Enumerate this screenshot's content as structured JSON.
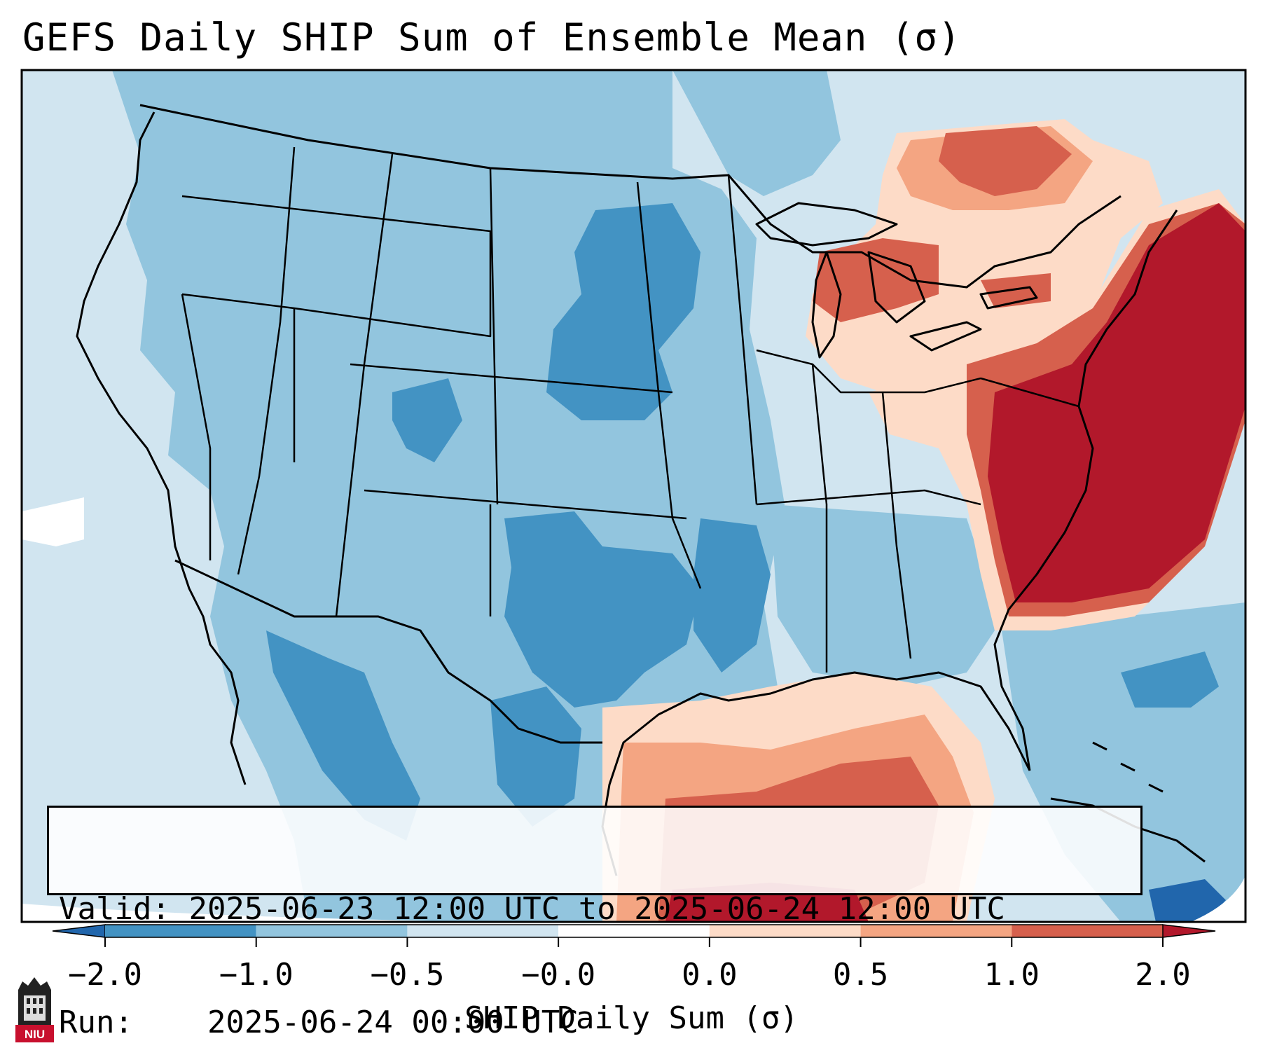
{
  "title": "GEFS Daily SHIP Sum of Ensemble Mean (σ)",
  "info": {
    "valid_label": "Valid:",
    "valid_value": "2025-06-23 12:00 UTC to 2025-06-24 12:00 UTC",
    "run_label": "Run:",
    "run_value": "2025-06-24 00:00 UTC"
  },
  "colorbar": {
    "label": "SHIP Daily Sum (σ)",
    "ticks": [
      "−2.0",
      "−1.0",
      "−0.5",
      "−0.0",
      "0.0",
      "0.5",
      "1.0",
      "2.0"
    ],
    "colors": [
      "#2166ac",
      "#4393c3",
      "#92c5de",
      "#d1e5f0",
      "#ffffff",
      "#fddbc7",
      "#f4a582",
      "#d6604d",
      "#b2182b"
    ]
  },
  "logo": {
    "text": "NIU"
  }
}
